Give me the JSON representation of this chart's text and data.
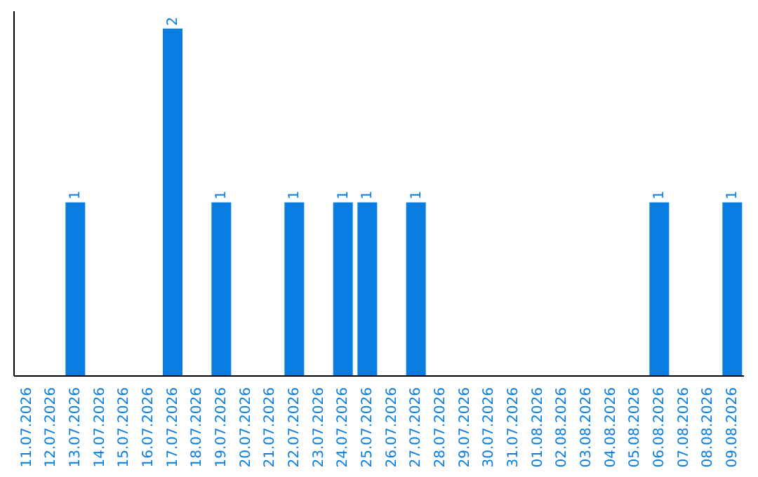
{
  "chart_data": {
    "type": "bar",
    "categories": [
      "11.07.2026",
      "12.07.2026",
      "13.07.2026",
      "14.07.2026",
      "15.07.2026",
      "16.07.2026",
      "17.07.2026",
      "18.07.2026",
      "19.07.2026",
      "20.07.2026",
      "21.07.2026",
      "22.07.2026",
      "23.07.2026",
      "24.07.2026",
      "25.07.2026",
      "26.07.2026",
      "27.07.2026",
      "28.07.2026",
      "29.07.2026",
      "30.07.2026",
      "31.07.2026",
      "01.08.2026",
      "02.08.2026",
      "03.08.2026",
      "04.08.2026",
      "05.08.2026",
      "06.08.2026",
      "07.08.2026",
      "08.08.2026",
      "09.08.2026"
    ],
    "values": [
      0,
      0,
      1,
      0,
      0,
      0,
      2,
      0,
      1,
      0,
      0,
      1,
      0,
      1,
      1,
      0,
      1,
      0,
      0,
      0,
      0,
      0,
      0,
      0,
      0,
      0,
      1,
      0,
      0,
      1
    ],
    "value_labels": [
      null,
      null,
      "1",
      null,
      null,
      null,
      "2",
      null,
      "1",
      null,
      null,
      "1",
      null,
      "1",
      "1",
      null,
      "1",
      null,
      null,
      null,
      null,
      null,
      null,
      null,
      null,
      null,
      "1",
      null,
      null,
      "1"
    ],
    "color": "#0a7de3",
    "ylim": [
      0,
      2.1
    ],
    "tick_labels": "x",
    "grid": false,
    "legend": false
  }
}
